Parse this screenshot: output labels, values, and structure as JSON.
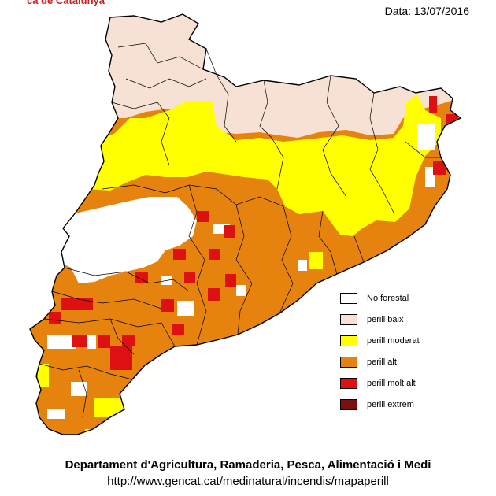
{
  "header": {
    "title_fragment": "ca de Catalunya",
    "date": "Data: 13/07/2016"
  },
  "legend": {
    "items": [
      {
        "label": "No forestal",
        "color": "#ffffff"
      },
      {
        "label": "perill baix",
        "color": "#f7e1d5"
      },
      {
        "label": "perill moderat",
        "color": "#ffff00"
      },
      {
        "label": "perill alt",
        "color": "#e6820e"
      },
      {
        "label": "perill molt alt",
        "color": "#dd1111"
      },
      {
        "label": "perill extrem",
        "color": "#7a1010"
      }
    ]
  },
  "footer": {
    "organization": "Departament d'Agricultura, Ramaderia, Pesca, Alimentació i Medi",
    "url": "http://www.gencat.cat/medinatural/incendis/mapaperill"
  }
}
